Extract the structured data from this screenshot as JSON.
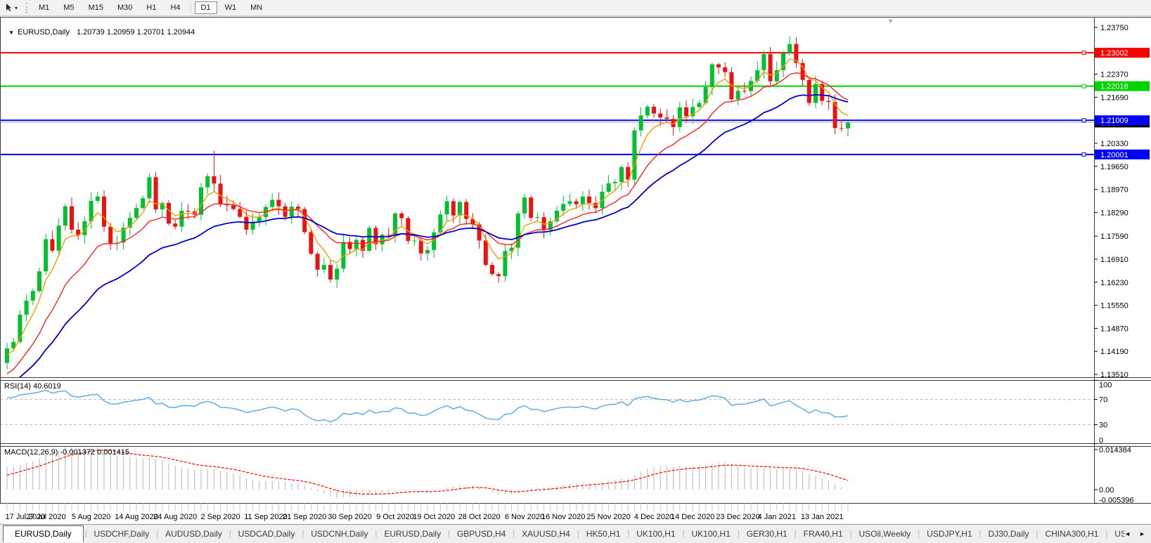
{
  "icons": {
    "title_collapse": "▼",
    "chart_shift": "▼"
  },
  "toolbar": {
    "timeframes": [
      "M1",
      "M5",
      "M15",
      "M30",
      "H1",
      "H4",
      "D1",
      "W1",
      "MN"
    ],
    "active_timeframe": "D1"
  },
  "chart_data": {
    "type": "candlestick",
    "symbol_title": "EURUSD,Daily",
    "ohlc_display": "1.20739 1.20959 1.20701 1.20944",
    "price_axis": {
      "ticks": [
        1.2375,
        1.2237,
        1.2169,
        1.2033,
        1.1965,
        1.1897,
        1.1829,
        1.1759,
        1.1691,
        1.1623,
        1.1555,
        1.1487,
        1.1419,
        1.1351
      ],
      "decimals": 5,
      "min": 1.1351,
      "max": 1.2375
    },
    "hlines": [
      {
        "price": 1.23002,
        "color": "#ff0000"
      },
      {
        "price": 1.22016,
        "color": "#00d400"
      },
      {
        "price": 1.21009,
        "color": "#0000ff"
      },
      {
        "price": 1.20001,
        "color": "#0000ff"
      }
    ],
    "current_price": {
      "value": 1.20944,
      "line_color": "#b8b8b8",
      "box_color": "#000000"
    },
    "candles": {
      "up_color": "#00c130",
      "down_color": "#ed1212",
      "first_open": 1.1385,
      "closes": [
        1.1428,
        1.1447,
        1.1527,
        1.1569,
        1.1597,
        1.1655,
        1.175,
        1.1716,
        1.179,
        1.1847,
        1.1778,
        1.1762,
        1.1803,
        1.1863,
        1.1876,
        1.1787,
        1.1738,
        1.174,
        1.1784,
        1.1813,
        1.1842,
        1.1871,
        1.1933,
        1.1838,
        1.1857,
        1.1796,
        1.1787,
        1.1834,
        1.1832,
        1.1822,
        1.1903,
        1.1936,
        1.1914,
        1.1854,
        1.185,
        1.1839,
        1.1816,
        1.1778,
        1.1801,
        1.1815,
        1.1845,
        1.1866,
        1.1847,
        1.1816,
        1.1846,
        1.1839,
        1.1771,
        1.1707,
        1.166,
        1.1674,
        1.1631,
        1.1663,
        1.1742,
        1.1721,
        1.1748,
        1.1716,
        1.1783,
        1.1735,
        1.1763,
        1.1761,
        1.1826,
        1.1812,
        1.1745,
        1.1746,
        1.1708,
        1.1718,
        1.177,
        1.1823,
        1.1862,
        1.182,
        1.186,
        1.181,
        1.1794,
        1.1746,
        1.1674,
        1.1647,
        1.1641,
        1.1715,
        1.1725,
        1.1826,
        1.1873,
        1.1813,
        1.1815,
        1.1777,
        1.1803,
        1.1834,
        1.1854,
        1.1862,
        1.1853,
        1.1876,
        1.1857,
        1.1842,
        1.189,
        1.1915,
        1.1919,
        1.1963,
        1.1926,
        1.2071,
        1.2115,
        1.2141,
        1.2121,
        1.2109,
        1.2105,
        1.2081,
        1.2139,
        1.2113,
        1.214,
        1.2152,
        1.2199,
        1.2266,
        1.2257,
        1.2243,
        1.2163,
        1.2188,
        1.2187,
        1.2217,
        1.2249,
        1.2296,
        1.2216,
        1.2249,
        1.2299,
        1.2326,
        1.227,
        1.222,
        1.2152,
        1.2208,
        1.2158,
        1.2155,
        1.2078,
        1.2077,
        1.20944
      ],
      "spikes": [
        {
          "i": 32,
          "high": 1.2011
        },
        {
          "i": 121,
          "high": 1.2349
        }
      ]
    },
    "moving_averages": [
      {
        "period": 5,
        "method": "ema",
        "seed": 1.14,
        "color": "#e8a200"
      },
      {
        "period": 13,
        "method": "ema",
        "seed": 1.134,
        "color": "#ff2222"
      },
      {
        "period": 26,
        "method": "ema",
        "seed": 1.131,
        "color": "#0000cd"
      }
    ],
    "date_labels": [
      [
        0,
        "17 Jul 2020"
      ],
      [
        6,
        "27 Jul 2020"
      ],
      [
        13,
        "5 Aug 2020"
      ],
      [
        20,
        "14 Aug 2020"
      ],
      [
        26,
        "24 Aug 2020"
      ],
      [
        33,
        "2 Sep 2020"
      ],
      [
        40,
        "11 Sep 2020"
      ],
      [
        46,
        "21 Sep 2020"
      ],
      [
        53,
        "30 Sep 2020"
      ],
      [
        60,
        "9 Oct 2020"
      ],
      [
        66,
        "19 Oct 2020"
      ],
      [
        73,
        "28 Oct 2020"
      ],
      [
        80,
        "6 Nov 2020"
      ],
      [
        86,
        "16 Nov 2020"
      ],
      [
        93,
        "25 Nov 2020"
      ],
      [
        100,
        "4 Dec 2020"
      ],
      [
        106,
        "14 Dec 2020"
      ],
      [
        113,
        "23 Dec 2020"
      ],
      [
        119,
        "4 Jan 2021"
      ],
      [
        126,
        "13 Jan 2021"
      ]
    ],
    "rsi": {
      "label": "RSI(14) 40.6019",
      "period": 14,
      "color": "#55a8e8",
      "levels": [
        70,
        30
      ],
      "ticks": [
        100,
        70,
        30,
        0
      ],
      "seed_gain": 0.0028,
      "seed_loss": 0.0012
    },
    "macd": {
      "label": "MACD(12,26,9) -0.001372 0.001415",
      "fast": 12,
      "slow": 26,
      "signal_period": 9,
      "seeds": {
        "fast": 1.134,
        "slow": 1.126,
        "signal": 0.0045
      },
      "ticks": [
        {
          "v": 0.014384,
          "t": "0.014384"
        },
        {
          "v": 0,
          "t": "0.00"
        },
        {
          "v": -0.005396,
          "t": "-0.005396"
        }
      ],
      "hist_color": "#b4b4b4",
      "signal_color": "#ff0000"
    }
  },
  "tabs": {
    "items": [
      "EURUSD,Daily",
      "USDCHF,Daily",
      "AUDUSD,Daily",
      "USDCAD,Daily",
      "USDCNH,Daily",
      "EURUSD,Daily",
      "GBPUSD,H4",
      "XAUUSD,H4",
      "HK50,H1",
      "UK100,H1",
      "UK100,H1",
      "GER30,H1",
      "FRA40,H1",
      "USOil,Weekly",
      "USDJPY,H1",
      "DJ30,Daily",
      "CHINA300,H1",
      "USOil,"
    ],
    "active_index": 0,
    "scroll_left": "◄",
    "scroll_right": "►"
  }
}
